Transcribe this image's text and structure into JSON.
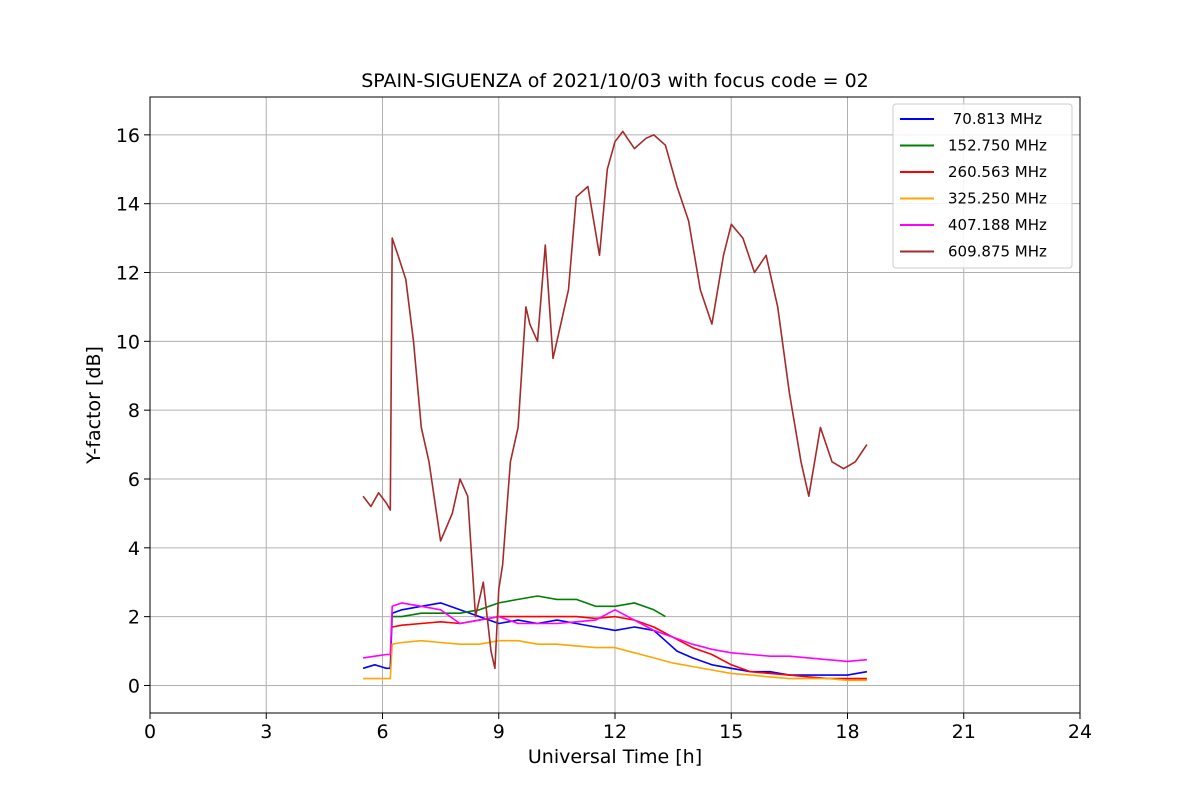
{
  "chart_data": {
    "type": "line",
    "title": "SPAIN-SIGUENZA of 2021/10/03 with focus code = 02",
    "xlabel": "Universal Time [h]",
    "ylabel": "Y-factor [dB]",
    "xlim": [
      0,
      24
    ],
    "ylim": [
      -0.8,
      17.1
    ],
    "xticks": [
      0,
      3,
      6,
      9,
      12,
      15,
      18,
      21,
      24
    ],
    "xtick_labels": [
      "0",
      "3",
      "6",
      "9",
      "12",
      "15",
      "18",
      "21",
      "24"
    ],
    "yticks": [
      0,
      2,
      4,
      6,
      8,
      10,
      12,
      14,
      16
    ],
    "ytick_labels": [
      "0",
      "2",
      "4",
      "6",
      "8",
      "10",
      "12",
      "14",
      "16"
    ],
    "grid": true,
    "legend_position": "top-right",
    "series": [
      {
        "name": " 70.813 MHz",
        "color": "#0000ff",
        "x": [
          5.5,
          5.8,
          6.1,
          6.2,
          6.25,
          6.5,
          7.0,
          7.5,
          8.0,
          8.5,
          9.0,
          9.5,
          10.0,
          10.5,
          11.0,
          11.5,
          12.0,
          12.5,
          13.0,
          13.3,
          13.6,
          14.0,
          14.5,
          15.0,
          15.5,
          16.0,
          16.5,
          17.0,
          17.5,
          18.0,
          18.5
        ],
        "y": [
          0.5,
          0.6,
          0.5,
          0.5,
          2.1,
          2.2,
          2.3,
          2.4,
          2.2,
          2.0,
          1.8,
          1.9,
          1.8,
          1.9,
          1.8,
          1.7,
          1.6,
          1.7,
          1.6,
          1.3,
          1.0,
          0.8,
          0.6,
          0.5,
          0.4,
          0.4,
          0.3,
          0.3,
          0.3,
          0.3,
          0.4
        ]
      },
      {
        "name": "152.750 MHz",
        "color": "#008000",
        "x": [
          6.25,
          6.5,
          7.0,
          7.5,
          8.0,
          8.5,
          9.0,
          9.5,
          10.0,
          10.5,
          11.0,
          11.5,
          12.0,
          12.5,
          13.0,
          13.3
        ],
        "y": [
          2.0,
          2.0,
          2.1,
          2.1,
          2.1,
          2.2,
          2.4,
          2.5,
          2.6,
          2.5,
          2.5,
          2.3,
          2.3,
          2.4,
          2.2,
          2.0
        ]
      },
      {
        "name": "260.563 MHz",
        "color": "#ff0000",
        "x": [
          6.25,
          6.5,
          7.0,
          7.5,
          8.0,
          8.5,
          9.0,
          9.5,
          10.0,
          10.5,
          11.0,
          11.5,
          12.0,
          12.5,
          13.0,
          13.5,
          14.0,
          14.5,
          15.0,
          15.5,
          16.0,
          16.5,
          17.0,
          17.5,
          18.0,
          18.5
        ],
        "y": [
          1.7,
          1.75,
          1.8,
          1.85,
          1.8,
          1.9,
          2.0,
          2.0,
          2.0,
          2.0,
          2.0,
          1.95,
          2.0,
          1.9,
          1.7,
          1.4,
          1.1,
          0.9,
          0.6,
          0.4,
          0.35,
          0.3,
          0.25,
          0.2,
          0.2,
          0.2
        ]
      },
      {
        "name": "325.250 MHz",
        "color": "#ffa500",
        "x": [
          5.5,
          6.1,
          6.2,
          6.25,
          6.5,
          7.0,
          7.5,
          8.0,
          8.5,
          9.0,
          9.5,
          10.0,
          10.5,
          11.0,
          11.5,
          12.0,
          12.5,
          13.0,
          13.5,
          14.0,
          14.5,
          15.0,
          15.5,
          16.0,
          16.5,
          17.0,
          17.5,
          18.0,
          18.5
        ],
        "y": [
          0.2,
          0.2,
          0.2,
          1.2,
          1.25,
          1.3,
          1.25,
          1.2,
          1.2,
          1.3,
          1.3,
          1.2,
          1.2,
          1.15,
          1.1,
          1.1,
          0.95,
          0.8,
          0.65,
          0.55,
          0.45,
          0.35,
          0.3,
          0.25,
          0.2,
          0.2,
          0.2,
          0.15,
          0.15
        ]
      },
      {
        "name": "407.188 MHz",
        "color": "#ff00ff",
        "x": [
          5.5,
          5.8,
          6.1,
          6.2,
          6.25,
          6.5,
          7.0,
          7.5,
          8.0,
          8.5,
          9.0,
          9.5,
          10.0,
          10.5,
          11.0,
          11.5,
          12.0,
          12.5,
          13.0,
          13.5,
          14.0,
          14.5,
          15.0,
          15.5,
          16.0,
          16.5,
          17.0,
          17.5,
          18.0,
          18.5
        ],
        "y": [
          0.8,
          0.85,
          0.9,
          0.9,
          2.3,
          2.4,
          2.3,
          2.2,
          1.8,
          1.9,
          2.0,
          1.8,
          1.8,
          1.8,
          1.85,
          1.9,
          2.2,
          1.9,
          1.6,
          1.4,
          1.2,
          1.05,
          0.95,
          0.9,
          0.85,
          0.85,
          0.8,
          0.75,
          0.7,
          0.75
        ]
      },
      {
        "name": "609.875 MHz",
        "color": "#a52a2a",
        "x": [
          5.5,
          5.7,
          5.9,
          6.1,
          6.2,
          6.25,
          6.4,
          6.6,
          6.8,
          7.0,
          7.2,
          7.5,
          7.8,
          8.0,
          8.2,
          8.4,
          8.6,
          8.8,
          8.9,
          9.0,
          9.1,
          9.3,
          9.5,
          9.7,
          9.8,
          10.0,
          10.2,
          10.4,
          10.6,
          10.8,
          11.0,
          11.3,
          11.6,
          11.8,
          12.0,
          12.2,
          12.5,
          12.8,
          13.0,
          13.3,
          13.6,
          13.9,
          14.2,
          14.5,
          14.8,
          15.0,
          15.3,
          15.6,
          15.9,
          16.2,
          16.5,
          16.8,
          17.0,
          17.3,
          17.6,
          17.9,
          18.2,
          18.5
        ],
        "y": [
          5.5,
          5.2,
          5.6,
          5.3,
          5.1,
          13.0,
          12.5,
          11.8,
          10.0,
          7.5,
          6.5,
          4.2,
          5.0,
          6.0,
          5.5,
          2.0,
          3.0,
          1.0,
          0.5,
          2.8,
          3.5,
          6.5,
          7.5,
          11.0,
          10.5,
          10.0,
          12.8,
          9.5,
          10.5,
          11.5,
          14.2,
          14.5,
          12.5,
          15.0,
          15.8,
          16.1,
          15.6,
          15.9,
          16.0,
          15.7,
          14.5,
          13.5,
          11.5,
          10.5,
          12.5,
          13.4,
          13.0,
          12.0,
          12.5,
          11.0,
          8.5,
          6.5,
          5.5,
          7.5,
          6.5,
          6.3,
          6.5,
          7.0
        ]
      }
    ]
  }
}
